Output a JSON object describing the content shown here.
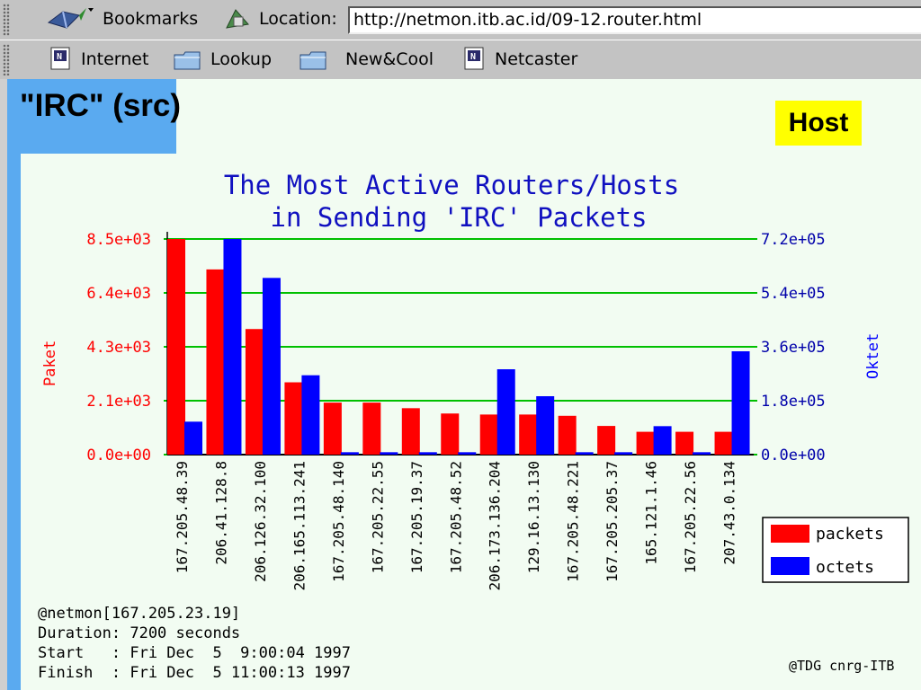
{
  "browser": {
    "bookmarks_label": "Bookmarks",
    "location_label": "Location:",
    "url": "http://netmon.itb.ac.id/09-12.router.html",
    "personal_toolbar": [
      {
        "label": "Internet",
        "icon": "netscape-doc-icon"
      },
      {
        "label": "Lookup",
        "icon": "folder-icon"
      },
      {
        "label": "New&Cool",
        "icon": "folder-icon"
      },
      {
        "label": "Netcaster",
        "icon": "netscape-doc-icon"
      }
    ]
  },
  "page": {
    "title": "\"IRC\" (src)",
    "badge": "Host",
    "colors": {
      "tab_blue": "#5aaaf0",
      "badge_yellow": "#ffff00",
      "background": "#f2fcf2"
    }
  },
  "chart_data": {
    "type": "bar",
    "title_line1": "The Most Active Routers/Hosts",
    "title_line2": "in Sending 'IRC' Packets",
    "ylabel_left": "Paket",
    "ylabel_right": "Oktet",
    "categories": [
      "167.205.48.39",
      "206.41.128.8",
      "206.126.32.100",
      "206.165.113.241",
      "167.205.48.140",
      "167.205.22.55",
      "167.205.19.37",
      "167.205.48.52",
      "206.173.136.204",
      "129.16.13.130",
      "167.205.48.221",
      "167.205.205.37",
      "165.121.1.46",
      "167.205.22.56",
      "207.43.0.134"
    ],
    "series": [
      {
        "name": "packets",
        "axis": "left",
        "color": "#ff0000",
        "values": [
          8500,
          7300,
          4950,
          2850,
          2050,
          2050,
          1830,
          1620,
          1580,
          1580,
          1530,
          1130,
          900,
          900,
          900
        ]
      },
      {
        "name": "octets",
        "axis": "right",
        "color": "#0000ff",
        "values": [
          110000,
          720000,
          590000,
          265000,
          8000,
          8000,
          8000,
          8000,
          285000,
          195000,
          8000,
          8000,
          95000,
          8000,
          345000
        ]
      }
    ],
    "left_ticks": [
      "0.0e+00",
      "2.1e+03",
      "4.3e+03",
      "6.4e+03",
      "8.5e+03"
    ],
    "right_ticks": [
      "0.0e+00",
      "1.8e+05",
      "3.6e+05",
      "5.4e+05",
      "7.2e+05"
    ],
    "ylim_left": [
      0,
      8500
    ],
    "ylim_right": [
      0,
      720000
    ],
    "grid": true,
    "legend_position": "bottom-right",
    "footer": [
      "@netmon[167.205.23.19]",
      "Duration: 7200 seconds",
      "Start   : Fri Dec  5  9:00:04 1997",
      "Finish  : Fri Dec  5 11:00:13 1997"
    ],
    "credit": "@TDG cnrg-ITB"
  }
}
